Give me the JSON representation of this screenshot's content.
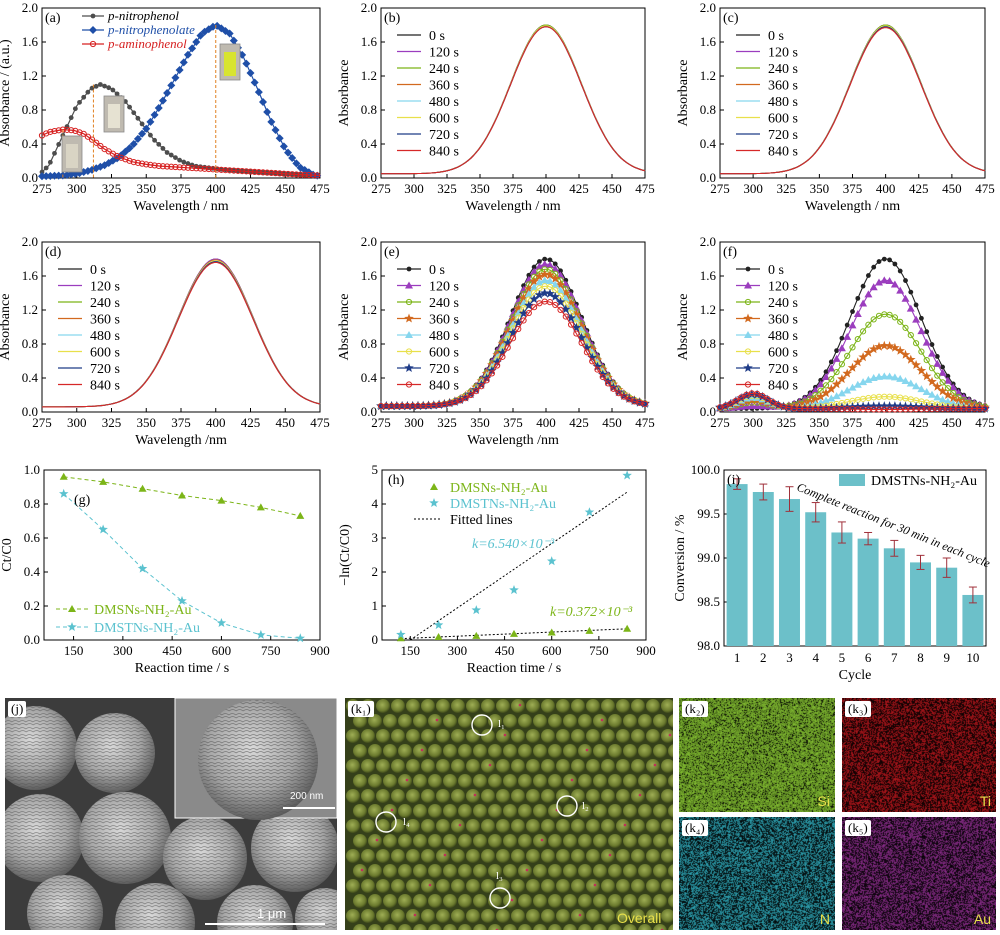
{
  "colors": {
    "p_nitrophenol": "#4d4d4d",
    "p_nitrophenolate": "#1f4fa8",
    "p_aminophenol": "#d62020",
    "time_series": [
      "#222222",
      "#9b3dbe",
      "#7cb518",
      "#d2691e",
      "#86d6ee",
      "#e8e04a",
      "#1f3c88",
      "#d62828"
    ],
    "dmsns": "#7cb518",
    "dmstns": "#5bc2cf",
    "bar": "#6cc0c9",
    "si_map": "#86c232",
    "ti_map": "#b3161c",
    "n_map": "#2fa8b8",
    "au_map": "#8b2d8b"
  },
  "panels": {
    "a": {
      "label": "(a)"
    },
    "b": {
      "label": "(b)"
    },
    "c": {
      "label": "(c)"
    },
    "d": {
      "label": "(d)"
    },
    "e": {
      "label": "(e)"
    },
    "f": {
      "label": "(f)"
    },
    "g": {
      "label": "(g)"
    },
    "h": {
      "label": "(h)"
    },
    "i": {
      "label": "(i)"
    },
    "j": {
      "label": "(j)",
      "inset_scale": "200 nm",
      "scale": "1 μm"
    },
    "k1": {
      "label": "(k₁)",
      "overall": "Overall",
      "circles": [
        "l₁",
        "l₂",
        "l₃",
        "l₄"
      ]
    },
    "k2": {
      "label": "(k₂)",
      "element": "Si"
    },
    "k3": {
      "label": "(k₃)",
      "element": "Ti"
    },
    "k4": {
      "label": "(k₄)",
      "element": "N"
    },
    "k5": {
      "label": "(k₅)",
      "element": "Au"
    }
  },
  "chart_data": [
    {
      "id": "a",
      "type": "line",
      "xlabel": "Wavelength / nm",
      "ylabel": "Absorbance / (a.u.)",
      "xlim": [
        275,
        475
      ],
      "ylim": [
        0,
        2.0
      ],
      "xticks": [
        275,
        300,
        325,
        350,
        375,
        400,
        425,
        450,
        475
      ],
      "yticks": [
        0,
        0.4,
        0.8,
        1.2,
        1.6,
        2.0
      ],
      "legend": [
        "p-nitrophenol",
        "p-nitrophenolate",
        "p-aminophenol"
      ],
      "series": [
        {
          "name": "p-nitrophenol",
          "x": [
            275,
            280,
            290,
            300,
            310,
            317,
            325,
            335,
            345,
            355,
            365,
            375,
            385,
            395,
            405,
            420,
            440,
            460,
            475
          ],
          "y": [
            0.07,
            0.15,
            0.5,
            0.85,
            1.05,
            1.1,
            1.05,
            0.9,
            0.68,
            0.46,
            0.3,
            0.2,
            0.14,
            0.12,
            0.1,
            0.08,
            0.06,
            0.04,
            0.03
          ]
        },
        {
          "name": "p-nitrophenolate",
          "x": [
            275,
            290,
            300,
            310,
            320,
            330,
            340,
            350,
            360,
            370,
            380,
            390,
            400,
            410,
            420,
            430,
            440,
            450,
            460,
            470,
            475
          ],
          "y": [
            0.02,
            0.03,
            0.05,
            0.09,
            0.15,
            0.24,
            0.38,
            0.58,
            0.85,
            1.15,
            1.45,
            1.7,
            1.8,
            1.7,
            1.42,
            1.05,
            0.66,
            0.34,
            0.13,
            0.04,
            0.02
          ]
        },
        {
          "name": "p-aminophenol",
          "x": [
            275,
            280,
            290,
            298,
            305,
            312,
            320,
            330,
            340,
            350,
            360,
            370,
            380,
            390,
            400,
            410,
            420,
            430,
            440,
            450,
            460,
            475
          ],
          "y": [
            0.5,
            0.54,
            0.57,
            0.56,
            0.52,
            0.44,
            0.34,
            0.25,
            0.19,
            0.16,
            0.14,
            0.13,
            0.12,
            0.11,
            0.1,
            0.09,
            0.08,
            0.07,
            0.06,
            0.05,
            0.04,
            0.03
          ]
        }
      ]
    },
    {
      "id": "b",
      "type": "line",
      "xlabel": "Wavelength / nm",
      "ylabel": "Absorbance",
      "xlim": [
        275,
        475
      ],
      "ylim": [
        0,
        2.0
      ],
      "xticks": [
        275,
        300,
        325,
        350,
        375,
        400,
        425,
        450,
        475
      ],
      "yticks": [
        0,
        0.4,
        0.8,
        1.2,
        1.6,
        2.0
      ],
      "legend": [
        "0 s",
        "120 s",
        "240 s",
        "360 s",
        "480 s",
        "600 s",
        "720 s",
        "840 s"
      ],
      "peak_values": [
        1.8,
        1.8,
        1.8,
        1.79,
        1.79,
        1.79,
        1.78,
        1.78
      ],
      "baseline": 0.05,
      "markers": false
    },
    {
      "id": "c",
      "type": "line",
      "xlabel": "Wavelength / nm",
      "ylabel": "Absorbance",
      "xlim": [
        275,
        475
      ],
      "ylim": [
        0,
        2.0
      ],
      "xticks": [
        275,
        300,
        325,
        350,
        375,
        400,
        425,
        450,
        475
      ],
      "yticks": [
        0,
        0.4,
        0.8,
        1.2,
        1.6,
        2.0
      ],
      "legend": [
        "0 s",
        "120 s",
        "240 s",
        "360 s",
        "480 s",
        "600 s",
        "720 s",
        "840 s"
      ],
      "peak_values": [
        1.8,
        1.8,
        1.8,
        1.79,
        1.79,
        1.79,
        1.78,
        1.77
      ],
      "baseline": 0.05,
      "markers": false
    },
    {
      "id": "d",
      "type": "line",
      "xlabel": "Wavelength /nm",
      "ylabel": "Absorbance",
      "xlim": [
        275,
        475
      ],
      "ylim": [
        0,
        2.0
      ],
      "xticks": [
        275,
        300,
        325,
        350,
        375,
        400,
        425,
        450,
        475
      ],
      "yticks": [
        0,
        0.4,
        0.8,
        1.2,
        1.6,
        2.0
      ],
      "legend": [
        "0 s",
        "120 s",
        "240 s",
        "360 s",
        "480 s",
        "600 s",
        "720 s",
        "840 s"
      ],
      "peak_values": [
        1.8,
        1.8,
        1.79,
        1.79,
        1.78,
        1.78,
        1.77,
        1.76
      ],
      "baseline": 0.06,
      "markers": false
    },
    {
      "id": "e",
      "type": "line",
      "xlabel": "Wavelength /nm",
      "ylabel": "Absorbance",
      "xlim": [
        275,
        475
      ],
      "ylim": [
        0,
        2.0
      ],
      "xticks": [
        275,
        300,
        325,
        350,
        375,
        400,
        425,
        450,
        475
      ],
      "yticks": [
        0,
        0.4,
        0.8,
        1.2,
        1.6,
        2.0
      ],
      "legend": [
        "0 s",
        "120 s",
        "240 s",
        "360 s",
        "480 s",
        "600 s",
        "720 s",
        "840 s"
      ],
      "peak_values": [
        1.8,
        1.74,
        1.68,
        1.62,
        1.55,
        1.48,
        1.4,
        1.3
      ],
      "baseline": 0.07,
      "markers": true
    },
    {
      "id": "f",
      "type": "line",
      "xlabel": "Wavelength /nm",
      "ylabel": "Absorbance",
      "xlim": [
        275,
        475
      ],
      "ylim": [
        0,
        2.0
      ],
      "xticks": [
        275,
        300,
        325,
        350,
        375,
        400,
        425,
        450,
        475
      ],
      "yticks": [
        0,
        0.4,
        0.8,
        1.2,
        1.6,
        2.0
      ],
      "legend": [
        "0 s",
        "120 s",
        "240 s",
        "360 s",
        "480 s",
        "600 s",
        "720 s",
        "840 s"
      ],
      "peak_values": [
        1.8,
        1.55,
        1.15,
        0.78,
        0.42,
        0.18,
        0.07,
        0.03
      ],
      "aminophenol_peak": [
        0,
        0.03,
        0.07,
        0.1,
        0.13,
        0.15,
        0.17,
        0.18
      ],
      "baseline": 0.04,
      "markers": true
    },
    {
      "id": "g",
      "type": "scatter",
      "xlabel": "Reaction time / s",
      "ylabel": "Ct/C0",
      "xlim": [
        60,
        900
      ],
      "ylim": [
        0,
        1.0
      ],
      "xticks": [
        150,
        300,
        450,
        600,
        750,
        900
      ],
      "yticks": [
        0,
        0.2,
        0.4,
        0.6,
        0.8,
        1.0
      ],
      "series": [
        {
          "name": "DMSNs-NH₂-Au",
          "x": [
            120,
            240,
            360,
            480,
            600,
            720,
            840
          ],
          "y": [
            0.96,
            0.93,
            0.89,
            0.85,
            0.82,
            0.78,
            0.73
          ]
        },
        {
          "name": "DMSTNs-NH₂-Au",
          "x": [
            120,
            240,
            360,
            480,
            600,
            720,
            840
          ],
          "y": [
            0.86,
            0.65,
            0.42,
            0.23,
            0.1,
            0.03,
            0.01
          ]
        }
      ]
    },
    {
      "id": "h",
      "type": "scatter",
      "xlabel": "Reaction time / s",
      "ylabel": "−ln(Ct/C0)",
      "xlim": [
        60,
        900
      ],
      "ylim": [
        0,
        5
      ],
      "xticks": [
        150,
        300,
        450,
        600,
        750,
        900
      ],
      "yticks": [
        0,
        1,
        2,
        3,
        4,
        5
      ],
      "legend": [
        "DMSNs-NH₂-Au",
        "DMSTNs-NH₂-Au",
        "Fitted lines"
      ],
      "k_dmstns": "k=6.540×10⁻³",
      "k_dmsns": "k=0.372×10⁻³",
      "series": [
        {
          "name": "DMSNs-NH₂-Au",
          "x": [
            120,
            240,
            360,
            480,
            600,
            720,
            840
          ],
          "y": [
            0.05,
            0.09,
            0.12,
            0.18,
            0.22,
            0.27,
            0.33
          ]
        },
        {
          "name": "DMSTNs-NH₂-Au",
          "x": [
            120,
            240,
            360,
            480,
            600,
            720,
            840
          ],
          "y": [
            0.16,
            0.44,
            0.88,
            1.47,
            2.32,
            3.76,
            4.84
          ]
        }
      ],
      "fits": [
        {
          "x": [
            120,
            840
          ],
          "y": [
            0.04,
            0.33
          ]
        },
        {
          "x": [
            150,
            840
          ],
          "y": [
            0.0,
            4.35
          ]
        }
      ]
    },
    {
      "id": "i",
      "type": "bar",
      "xlabel": "Cycle",
      "ylabel": "Conversion / %",
      "ylim": [
        98.0,
        100.0
      ],
      "yticks": [
        98.0,
        98.5,
        99.0,
        99.5,
        100.0
      ],
      "categories": [
        "1",
        "2",
        "3",
        "4",
        "5",
        "6",
        "7",
        "8",
        "9",
        "10"
      ],
      "values": [
        99.84,
        99.75,
        99.67,
        99.52,
        99.29,
        99.22,
        99.11,
        98.95,
        98.89,
        98.58
      ],
      "errors": [
        0.06,
        0.09,
        0.14,
        0.11,
        0.12,
        0.07,
        0.09,
        0.08,
        0.11,
        0.09
      ],
      "legend": "DMSTNs-NH₂-Au",
      "annotation": "Complete reaction for 30 min in each cycle"
    }
  ]
}
